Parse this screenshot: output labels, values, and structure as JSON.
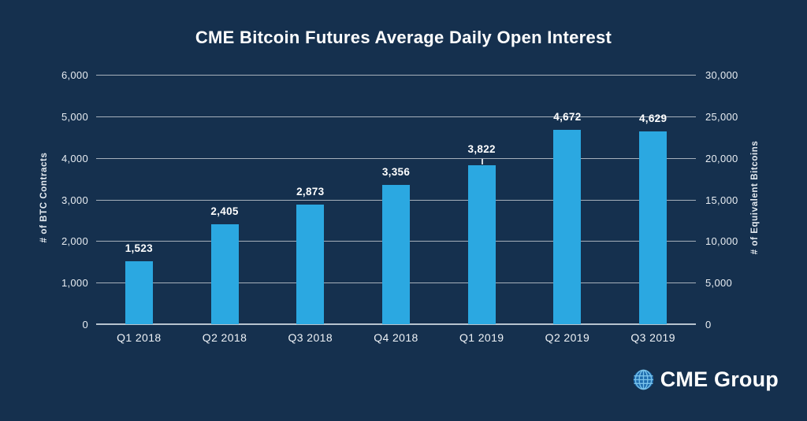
{
  "chart_data": {
    "type": "bar",
    "title": "CME Bitcoin Futures Average Daily Open Interest",
    "categories": [
      "Q1 2018",
      "Q2 2018",
      "Q3 2018",
      "Q4 2018",
      "Q1 2019",
      "Q2 2019",
      "Q3 2019"
    ],
    "values": [
      1523,
      2405,
      2873,
      3356,
      3822,
      4672,
      4629
    ],
    "value_labels": [
      "1,523",
      "2,405",
      "2,873",
      "3,356",
      "3,822",
      "4,672",
      "4,629"
    ],
    "left_axis": {
      "title": "# of BTC Contracts",
      "min": 0,
      "max": 6000,
      "ticks": [
        "6,000",
        "5,000",
        "4,000",
        "3,000",
        "2,000",
        "1,000",
        "0"
      ]
    },
    "right_axis": {
      "title": "# of Equivalent Bitcoins",
      "min": 0,
      "max": 30000,
      "ticks": [
        "30,000",
        "25,000",
        "20,000",
        "15,000",
        "10,000",
        "5,000",
        "0"
      ]
    },
    "grid": true,
    "legend": false,
    "leader_line_index": 4,
    "colors": {
      "background": "#15304E",
      "bar": "#2BA8E1",
      "gridline": "#A7B4C2",
      "text": "#FFFFFF"
    }
  },
  "logo": {
    "text": "CME Group",
    "globe_fill": "#1E6CAE",
    "globe_grid": "#79C2EA"
  }
}
